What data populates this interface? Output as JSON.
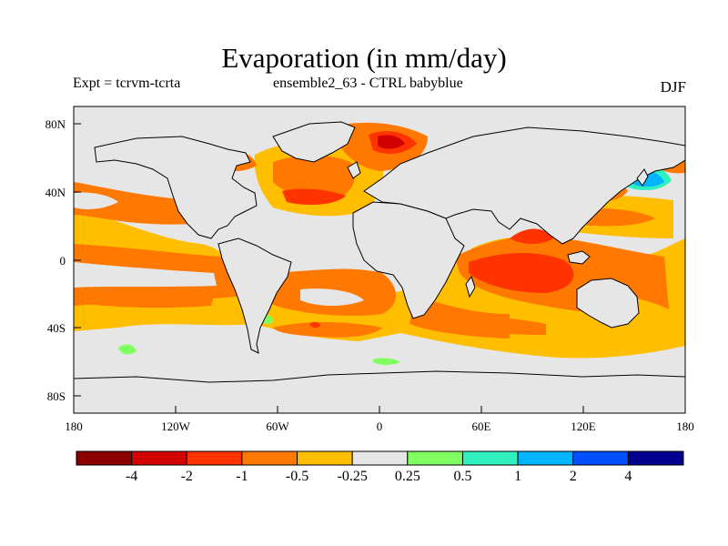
{
  "title": "Evaporation (in mm/day)",
  "subtitle_left": "Expt = tcrvm-tcrta",
  "subtitle_center": "ensemble2_63 - CTRL babyblue",
  "season": "DJF",
  "map": {
    "lat_ticks": [
      "80N",
      "40N",
      "0",
      "40S",
      "80S"
    ],
    "lon_ticks": [
      "180",
      "120W",
      "60W",
      "0",
      "60E",
      "120E",
      "180"
    ],
    "ocean_color": "#e6e6e6",
    "land_outline_color": "#000000"
  },
  "colorbar": {
    "colors": [
      "#8c0000",
      "#d20000",
      "#ff3300",
      "#ff7800",
      "#ffbe00",
      "#e6e6e6",
      "#80ff60",
      "#30f0c0",
      "#00b4ff",
      "#0050ff",
      "#000090"
    ],
    "labels": [
      "-4",
      "-2",
      "-1",
      "-0.5",
      "-0.25",
      "0.25",
      "0.5",
      "1",
      "2",
      "4"
    ]
  }
}
